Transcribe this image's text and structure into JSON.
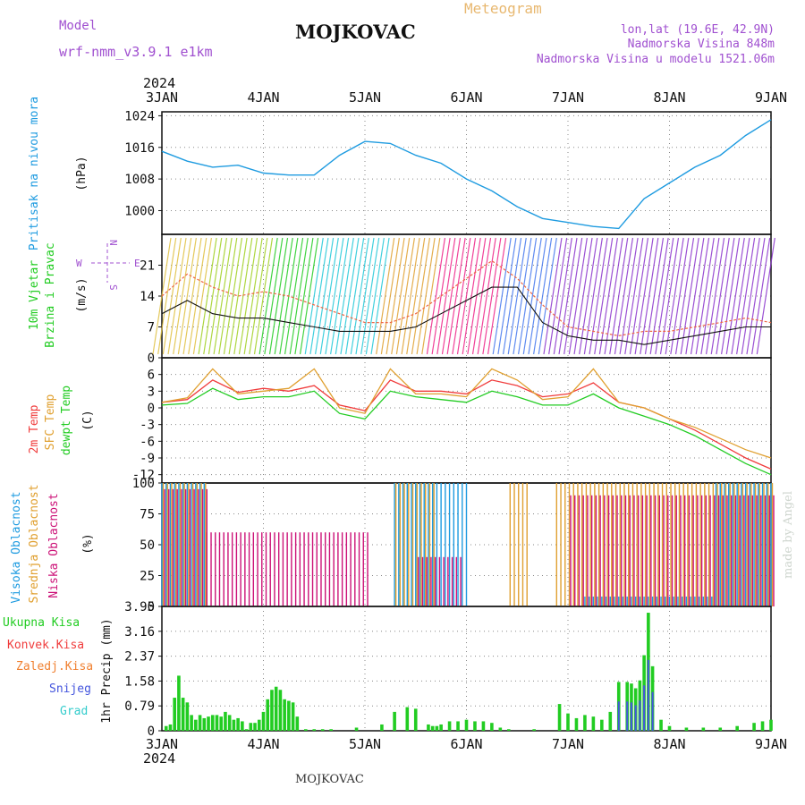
{
  "header": {
    "model_label": "Model",
    "model_name": "wrf-nmm_v3.9.1 e1km",
    "station": "MOJKOVAC",
    "title": "Meteogram",
    "lonlat": "lon,lat (19.6E, 42.9N)",
    "altitude": "Nadmorska Visina 848m",
    "model_altitude": "Nadmorska Visina u modelu 1521.06m",
    "footer_station": "MOJKOVAC",
    "credit": "made by Angel"
  },
  "colors": {
    "pressure": "#1e9be0",
    "temp2m": "#f03c3c",
    "sfc": "#e0a030",
    "dewpt": "#22cc22",
    "high_cloud": "#1e9be0",
    "mid_cloud": "#e0a030",
    "low_cloud": "#cc1177",
    "total_precip": "#22cc22",
    "conv_precip": "#f03c3c",
    "frozen_precip": "#f08030",
    "snow": "#4455dd",
    "graupel": "#33cccc",
    "header_purple": "#a050d0",
    "header_orange": "#e8b870"
  },
  "time_axis": {
    "year": "2024",
    "ticks": [
      "3JAN",
      "4JAN",
      "5JAN",
      "6JAN",
      "7JAN",
      "8JAN",
      "9JAN"
    ],
    "hours": 144
  },
  "chart_data": [
    {
      "id": "pressure",
      "type": "line",
      "title": "Pritisak na nivou mora",
      "ylabel": "(hPa)",
      "ylim": [
        994,
        1025
      ],
      "yticks": [
        1000,
        1008,
        1016,
        1024
      ],
      "x_hours": [
        0,
        6,
        12,
        18,
        24,
        30,
        36,
        42,
        48,
        54,
        60,
        66,
        72,
        78,
        84,
        90,
        96,
        102,
        108,
        114,
        120,
        126,
        132,
        138,
        144
      ],
      "values": [
        1015,
        1012.5,
        1011,
        1011.5,
        1009.5,
        1009,
        1009,
        1014,
        1017.5,
        1017,
        1014,
        1012,
        1008,
        1005,
        1001,
        998,
        997,
        996,
        995.5,
        1003,
        1007,
        1011,
        1014,
        1019,
        1023
      ]
    },
    {
      "id": "wind",
      "type": "line",
      "title": "10m Vjetar Brzina i Pravac",
      "ylabel": "(m/s)",
      "ylim": [
        0,
        28
      ],
      "yticks": [
        0,
        7,
        14,
        21
      ],
      "x_hours": [
        0,
        6,
        12,
        18,
        24,
        30,
        36,
        42,
        48,
        54,
        60,
        66,
        72,
        78,
        84,
        90,
        96,
        102,
        108,
        114,
        120,
        126,
        132,
        138,
        144
      ],
      "speed": [
        10,
        13,
        10,
        9,
        9,
        8,
        7,
        6,
        6,
        6,
        7,
        10,
        13,
        16,
        16,
        8,
        5,
        4,
        4,
        3,
        4,
        5,
        6,
        7,
        7
      ],
      "gust": [
        14,
        19,
        16,
        14,
        15,
        14,
        12,
        10,
        8,
        8,
        10,
        14,
        18,
        22,
        18,
        12,
        7,
        6,
        5,
        6,
        6,
        7,
        8,
        9,
        8
      ],
      "compass": [
        "N",
        "S",
        "W",
        "E"
      ]
    },
    {
      "id": "temperature",
      "type": "line",
      "title": "2m Temp / SFC Temp / dewpt Temp",
      "ylabel": "(C)",
      "ylim": [
        -13.5,
        9
      ],
      "yticks": [
        -12,
        -9,
        -6,
        -3,
        0,
        3,
        6
      ],
      "x_hours": [
        0,
        6,
        12,
        18,
        24,
        30,
        36,
        42,
        48,
        54,
        60,
        66,
        72,
        78,
        84,
        90,
        96,
        102,
        108,
        114,
        120,
        126,
        132,
        138,
        144
      ],
      "series": [
        {
          "name": "2m Temp",
          "values": [
            1,
            1.5,
            5,
            2.8,
            3.5,
            3,
            4,
            0.5,
            -0.5,
            5,
            3,
            3,
            2.5,
            5,
            4,
            2,
            2.5,
            4.5,
            1,
            0,
            -2,
            -4,
            -6.5,
            -9,
            -11
          ]
        },
        {
          "name": "SFC Temp",
          "values": [
            1,
            1.8,
            7,
            2.5,
            3,
            3.5,
            7,
            0,
            -1,
            7,
            2.5,
            2.5,
            2,
            7,
            5,
            1.5,
            2,
            7,
            1,
            0,
            -2,
            -3.5,
            -5.5,
            -7.5,
            -9
          ]
        },
        {
          "name": "dewpt Temp",
          "values": [
            0.5,
            0.8,
            3.5,
            1.5,
            2,
            2,
            3,
            -1,
            -2,
            3,
            2,
            1.5,
            1,
            3,
            2,
            0.5,
            0.5,
            2.5,
            0,
            -1.5,
            -3,
            -5,
            -7.5,
            -10,
            -12
          ]
        }
      ]
    },
    {
      "id": "clouds",
      "type": "bar",
      "title": "Visoka Oblacnost / Srednja Oblacnost / Niska Oblacnost",
      "ylabel": "(%)",
      "ylim": [
        0,
        100
      ],
      "yticks": [
        0,
        25,
        50,
        75,
        100
      ],
      "series": [
        {
          "name": "Visoka Oblacnost",
          "segments": [
            [
              0,
              10,
              100
            ],
            [
              55,
              72,
              100
            ],
            [
              100,
              130,
              8
            ],
            [
              131,
              144,
              100
            ]
          ]
        },
        {
          "name": "Srednja Oblacnost",
          "segments": [
            [
              0,
              10,
              100
            ],
            [
              55,
              64,
              100
            ],
            [
              82,
              86,
              100
            ],
            [
              93,
              144,
              100
            ]
          ]
        },
        {
          "name": "Niska Oblacnost",
          "segments": [
            [
              0,
              10,
              95
            ],
            [
              10,
              48,
              60
            ],
            [
              60,
              70,
              40
            ],
            [
              96,
              144,
              90
            ]
          ]
        }
      ]
    },
    {
      "id": "precip",
      "type": "bar",
      "title": "Ukupna Kisa / Konvek.Kisa / Zaledj.Kisa / Snijeg / Grad",
      "ylabel": "1hr Precip (mm)",
      "ylim": [
        0,
        3.95
      ],
      "yticks": [
        0,
        0.79,
        1.58,
        2.37,
        3.16,
        3.95
      ],
      "legend": [
        "Ukupna Kisa",
        "Konvek.Kisa",
        "Zaledj.Kisa",
        "Snijeg",
        "Grad"
      ],
      "x_hours": [
        1,
        2,
        3,
        4,
        5,
        6,
        7,
        8,
        9,
        10,
        11,
        12,
        13,
        14,
        15,
        16,
        17,
        18,
        19,
        20,
        21,
        22,
        23,
        24,
        25,
        26,
        27,
        28,
        29,
        30,
        31,
        32,
        34,
        36,
        38,
        40,
        46,
        52,
        55,
        58,
        60,
        63,
        64,
        65,
        66,
        68,
        70,
        72,
        74,
        76,
        78,
        80,
        82,
        88,
        94,
        96,
        98,
        100,
        102,
        104,
        106,
        108,
        110,
        111,
        112,
        113,
        114,
        115,
        116,
        118,
        120,
        124,
        128,
        132,
        136,
        140,
        142,
        144
      ],
      "values": [
        0.15,
        0.2,
        1.05,
        1.75,
        1.05,
        0.9,
        0.5,
        0.35,
        0.5,
        0.4,
        0.45,
        0.5,
        0.5,
        0.45,
        0.6,
        0.5,
        0.35,
        0.4,
        0.3,
        0.05,
        0.25,
        0.25,
        0.35,
        0.6,
        1.0,
        1.3,
        1.4,
        1.3,
        1.0,
        0.95,
        0.9,
        0.45,
        0.05,
        0.05,
        0.05,
        0.05,
        0.1,
        0.2,
        0.6,
        0.75,
        0.7,
        0.2,
        0.15,
        0.15,
        0.2,
        0.3,
        0.3,
        0.35,
        0.3,
        0.3,
        0.25,
        0.1,
        0.05,
        0.05,
        0.85,
        0.55,
        0.4,
        0.5,
        0.45,
        0.35,
        0.6,
        1.55,
        1.55,
        1.5,
        1.35,
        1.6,
        2.4,
        3.75,
        2.05,
        0.35,
        0.15,
        0.1,
        0.1,
        0.1,
        0.15,
        0.25,
        0.3,
        0.35
      ]
    }
  ]
}
